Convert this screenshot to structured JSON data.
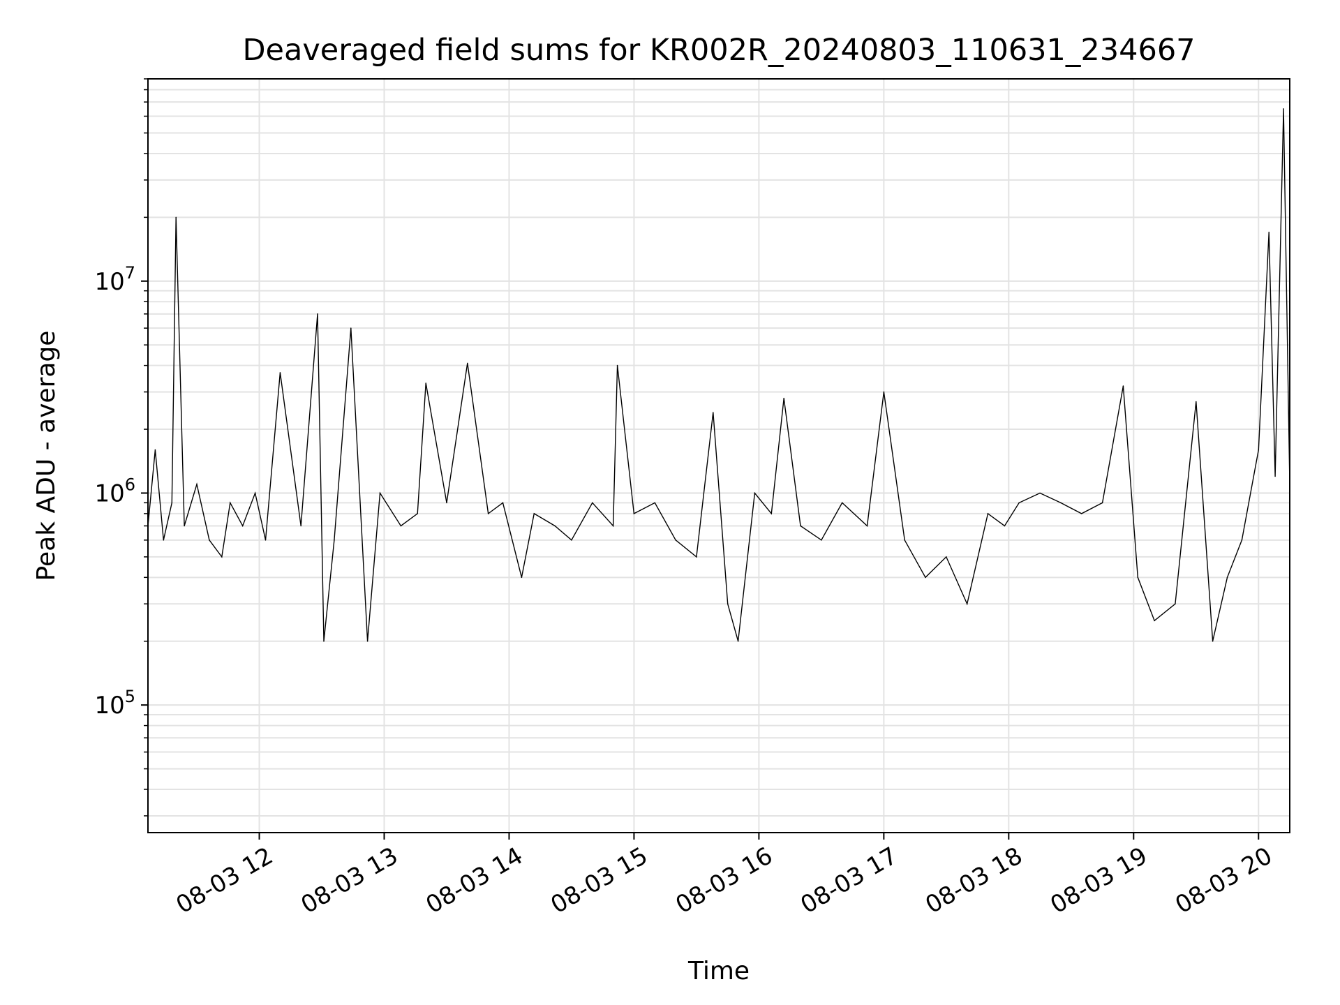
{
  "chart_data": {
    "type": "line",
    "title": "Deaveraged field sums for KR002R_20240803_110631_234667",
    "xlabel": "Time",
    "ylabel": "Peak ADU - average",
    "x_axis": {
      "kind": "datetime",
      "range": [
        "2024-08-03 11:06:31",
        "2024-08-03 20:15:00"
      ],
      "tick_labels": [
        "08-03 12",
        "08-03 13",
        "08-03 14",
        "08-03 15",
        "08-03 16",
        "08-03 17",
        "08-03 18",
        "08-03 19",
        "08-03 20"
      ],
      "tick_rotation_deg": 30
    },
    "y_axis": {
      "scale": "log",
      "range": [
        25000,
        90000000
      ],
      "tick_labels": [
        {
          "value": 100000,
          "base": "10",
          "exponent": "5"
        },
        {
          "value": 1000000,
          "base": "10",
          "exponent": "6"
        },
        {
          "value": 10000000,
          "base": "10",
          "exponent": "7"
        }
      ]
    },
    "grid": true,
    "line_color": "#000000",
    "series": [
      {
        "values_note_omitted": false,
        "x": [
          "2024-08-03 11:06:31",
          "2024-08-03 11:10:00",
          "2024-08-03 11:14:00",
          "2024-08-03 11:18:00",
          "2024-08-03 11:20:00",
          "2024-08-03 11:24:00",
          "2024-08-03 11:30:00",
          "2024-08-03 11:36:00",
          "2024-08-03 11:42:00",
          "2024-08-03 11:46:00",
          "2024-08-03 11:52:00",
          "2024-08-03 11:58:00",
          "2024-08-03 12:03:00",
          "2024-08-03 12:10:00",
          "2024-08-03 12:20:00",
          "2024-08-03 12:28:00",
          "2024-08-03 12:31:00",
          "2024-08-03 12:36:00",
          "2024-08-03 12:44:00",
          "2024-08-03 12:52:00",
          "2024-08-03 12:58:00",
          "2024-08-03 13:08:00",
          "2024-08-03 13:16:00",
          "2024-08-03 13:20:00",
          "2024-08-03 13:30:00",
          "2024-08-03 13:40:00",
          "2024-08-03 13:50:00",
          "2024-08-03 13:57:00",
          "2024-08-03 14:06:00",
          "2024-08-03 14:12:00",
          "2024-08-03 14:22:00",
          "2024-08-03 14:30:00",
          "2024-08-03 14:40:00",
          "2024-08-03 14:50:00",
          "2024-08-03 14:52:00",
          "2024-08-03 15:00:00",
          "2024-08-03 15:10:00",
          "2024-08-03 15:20:00",
          "2024-08-03 15:30:00",
          "2024-08-03 15:38:00",
          "2024-08-03 15:45:00",
          "2024-08-03 15:50:00",
          "2024-08-03 15:58:00",
          "2024-08-03 16:06:00",
          "2024-08-03 16:12:00",
          "2024-08-03 16:20:00",
          "2024-08-03 16:30:00",
          "2024-08-03 16:40:00",
          "2024-08-03 16:52:00",
          "2024-08-03 17:00:00",
          "2024-08-03 17:10:00",
          "2024-08-03 17:20:00",
          "2024-08-03 17:30:00",
          "2024-08-03 17:40:00",
          "2024-08-03 17:50:00",
          "2024-08-03 17:58:00",
          "2024-08-03 18:05:00",
          "2024-08-03 18:15:00",
          "2024-08-03 18:25:00",
          "2024-08-03 18:35:00",
          "2024-08-03 18:45:00",
          "2024-08-03 18:55:00",
          "2024-08-03 19:02:00",
          "2024-08-03 19:10:00",
          "2024-08-03 19:20:00",
          "2024-08-03 19:30:00",
          "2024-08-03 19:38:00",
          "2024-08-03 19:45:00",
          "2024-08-03 19:52:00",
          "2024-08-03 20:00:00",
          "2024-08-03 20:05:00",
          "2024-08-03 20:08:00",
          "2024-08-03 20:12:00",
          "2024-08-03 20:15:00"
        ],
        "y": [
          700000,
          1600000,
          600000,
          900000,
          20000000,
          700000,
          1100000,
          600000,
          500000,
          900000,
          700000,
          1000000,
          600000,
          3700000,
          700000,
          7000000,
          200000,
          600000,
          6000000,
          200000,
          1000000,
          700000,
          800000,
          3300000,
          900000,
          4100000,
          800000,
          900000,
          400000,
          800000,
          700000,
          600000,
          900000,
          700000,
          4000000,
          800000,
          900000,
          600000,
          500000,
          2400000,
          300000,
          200000,
          1000000,
          800000,
          2800000,
          700000,
          600000,
          900000,
          700000,
          3000000,
          600000,
          400000,
          500000,
          300000,
          800000,
          700000,
          900000,
          1000000,
          900000,
          800000,
          900000,
          3200000,
          400000,
          250000,
          300000,
          2700000,
          200000,
          400000,
          600000,
          1600000,
          17000000,
          1200000,
          65000000,
          1100000
        ]
      }
    ]
  }
}
